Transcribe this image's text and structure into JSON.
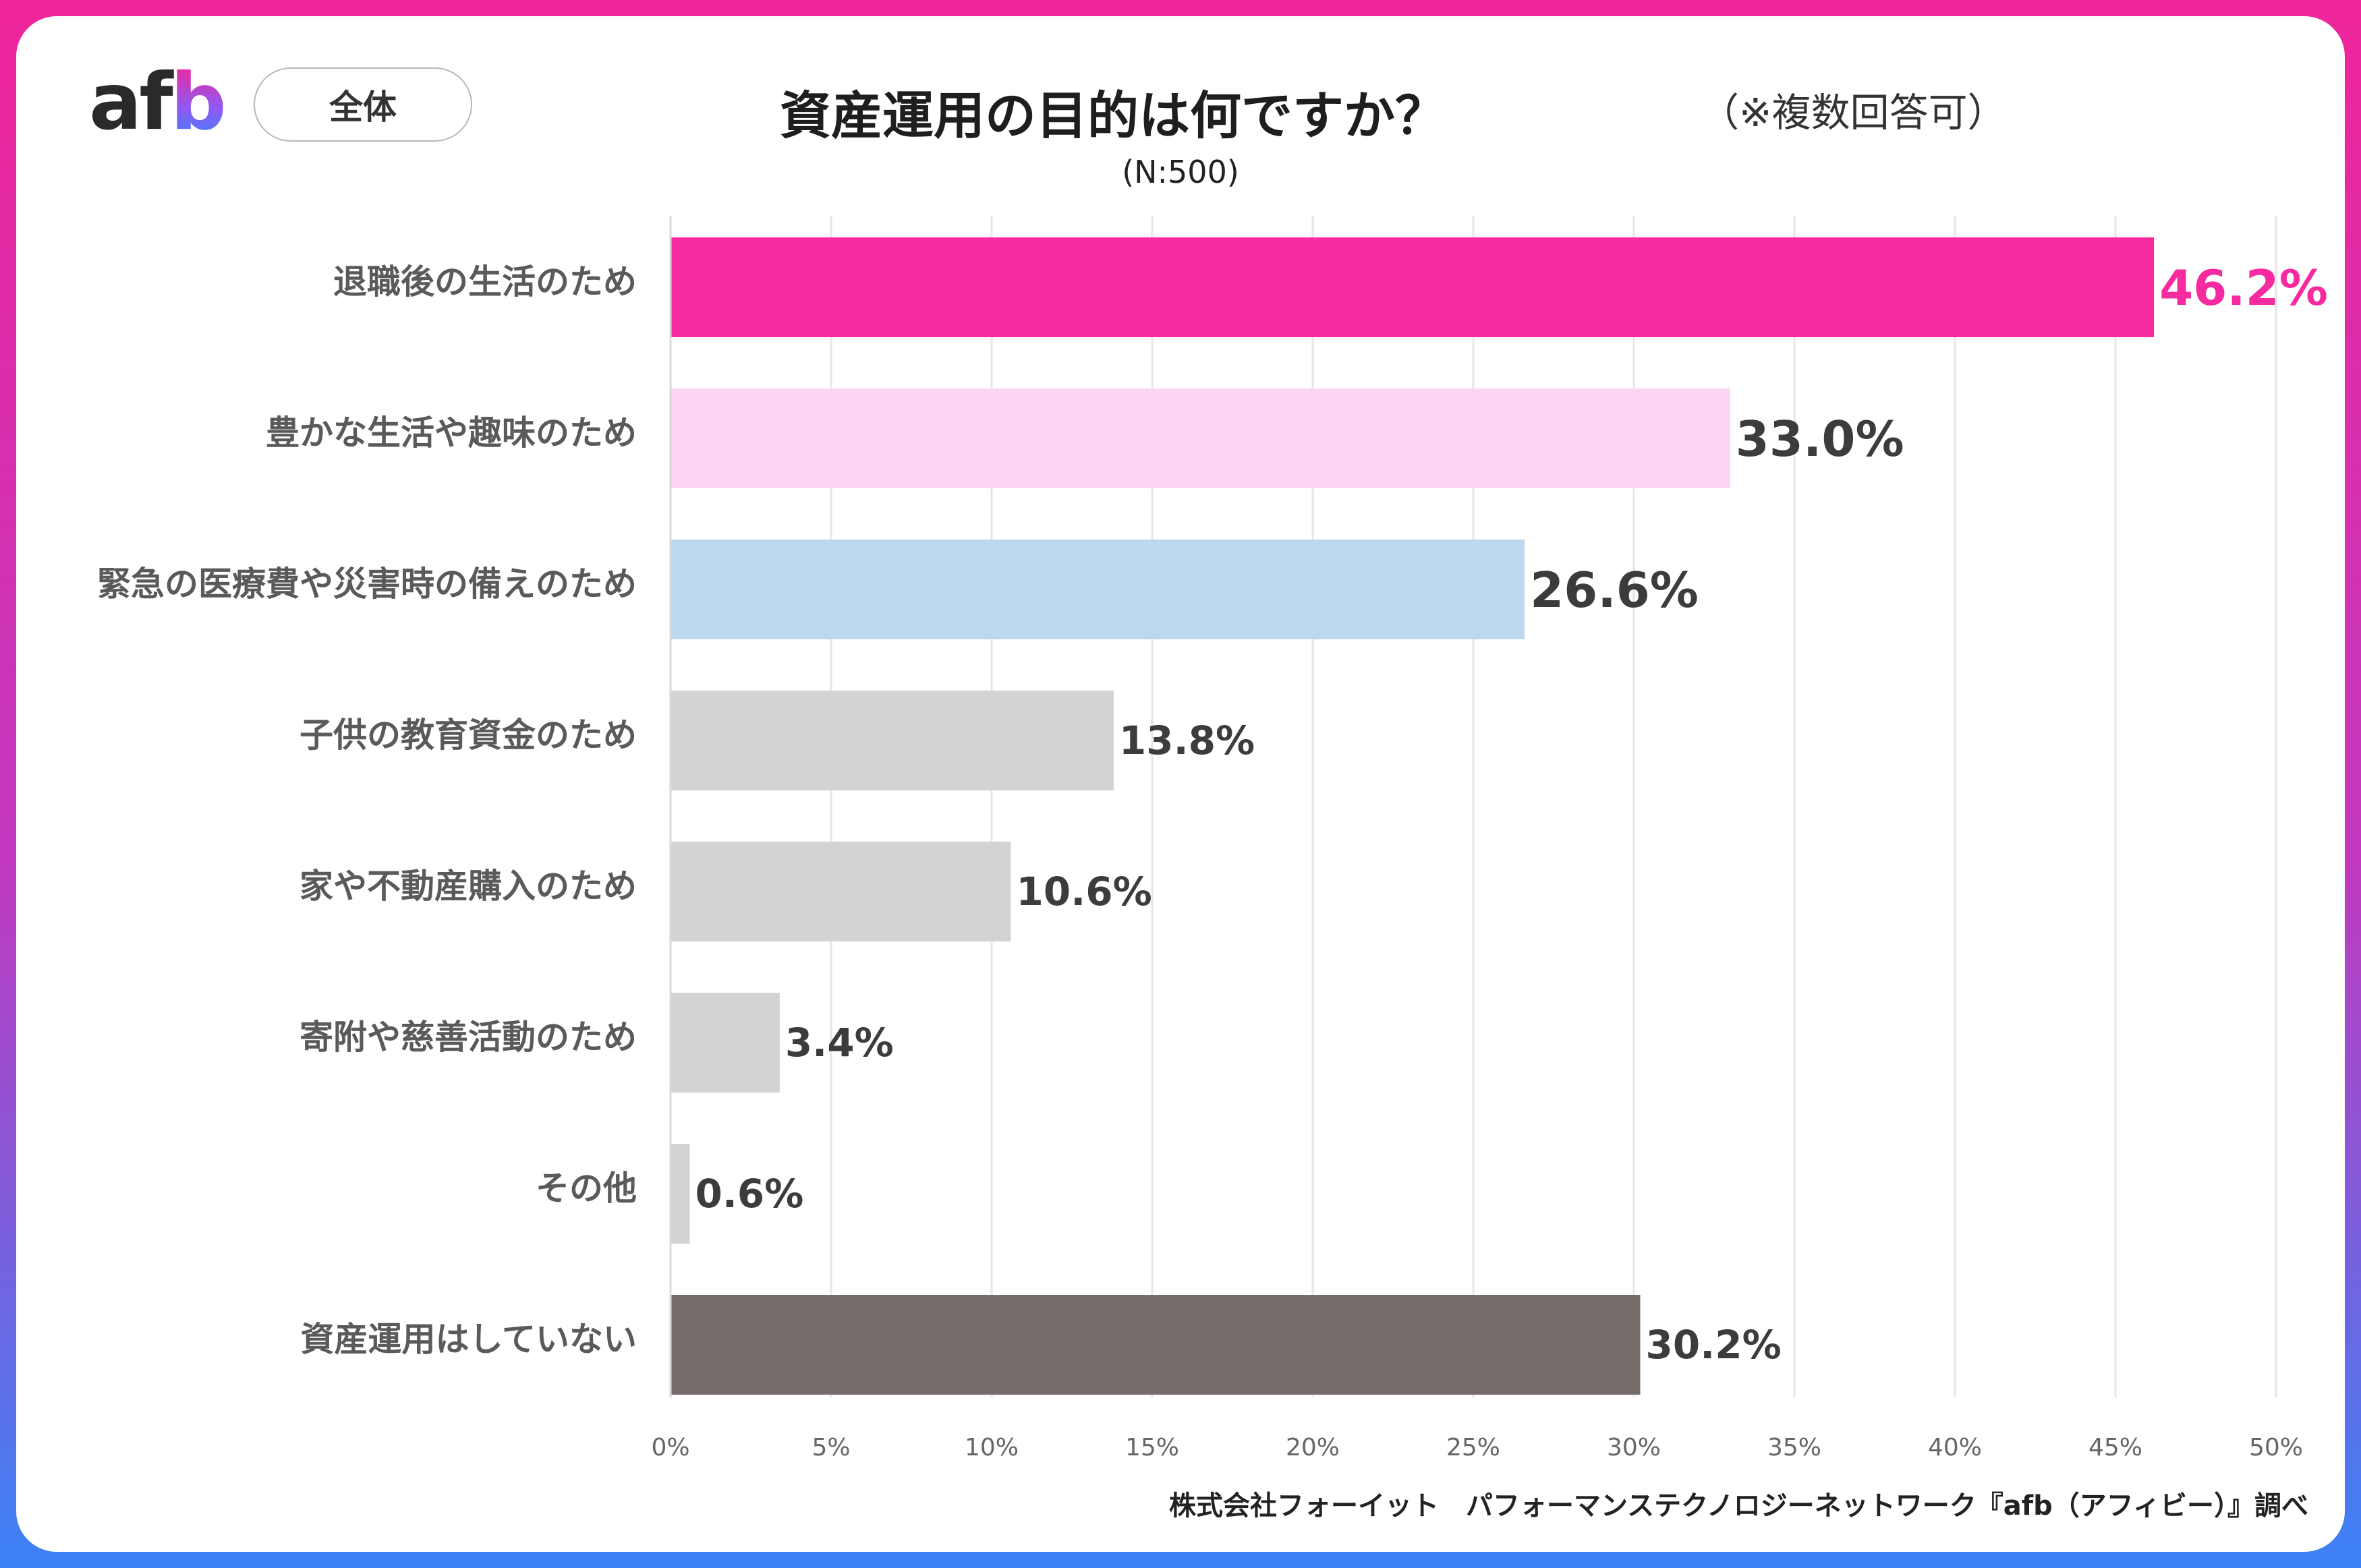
{
  "header": {
    "logo": "afb",
    "segment_pill": "全体",
    "title": "資産運用の目的は何ですか？",
    "note": "（※複数回答可）",
    "sample_size": "(N:500)"
  },
  "footer": {
    "source": "株式会社フォーイット　パフォーマンステクノロジーネットワーク『afb（アフィビー）』調べ"
  },
  "colors": {
    "accent_pink": "#f72aa0",
    "light_pink": "#fcd5f3",
    "light_blue": "#bdd7ee",
    "gray": "#d5d2d2",
    "dark_gray": "#766d6b",
    "gradient_top": "#f0259b",
    "gradient_bottom": "#3b82f6"
  },
  "chart_data": {
    "type": "bar",
    "orientation": "horizontal",
    "categories": [
      "退職後の生活のため",
      "豊かな生活や趣味のため",
      "緊急の医療費や災害時の備えのため",
      "子供の教育資金のため",
      "家や不動産購入のため",
      "寄附や慈善活動のため",
      "その他",
      "資産運用はしていない"
    ],
    "values": [
      46.2,
      33.0,
      26.6,
      13.8,
      10.6,
      3.4,
      0.6,
      30.2
    ],
    "value_labels": [
      "46.2%",
      "33.0%",
      "26.6%",
      "13.8%",
      "10.6%",
      "3.4%",
      "0.6%",
      "30.2%"
    ],
    "bar_colors": [
      "#f72aa0",
      "#fcd5f3",
      "#bdd7ee",
      "#d5d2d2",
      "#d5d2d2",
      "#d5d2d2",
      "#d5d2d2",
      "#766d6b"
    ],
    "label_colors": [
      "#f72aa0",
      "#3c3c3c",
      "#3c3c3c",
      "#3c3c3c",
      "#3c3c3c",
      "#3c3c3c",
      "#3c3c3c",
      "#3c3c3c"
    ],
    "xlim": [
      0,
      50
    ],
    "xticks": [
      "0%",
      "5%",
      "10%",
      "15%",
      "20%",
      "25%",
      "30%",
      "35%",
      "40%",
      "45%",
      "50%"
    ],
    "grid": true
  }
}
